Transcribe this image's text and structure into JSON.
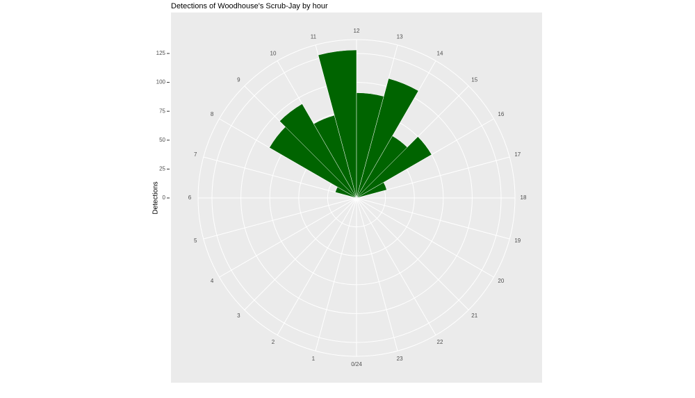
{
  "chart_data": {
    "type": "polar-bar",
    "title": "Detections of Woodhouse's Scrub-Jay by hour",
    "y_label": "Detections",
    "categories": [
      0,
      1,
      2,
      3,
      4,
      5,
      6,
      7,
      8,
      9,
      10,
      11,
      12,
      13,
      14,
      15,
      16,
      17,
      18,
      19,
      20,
      21,
      22,
      23
    ],
    "values": [
      0,
      0,
      0,
      0,
      0,
      0,
      0,
      19,
      87,
      94,
      74,
      128,
      91,
      107,
      62,
      75,
      27,
      0,
      0,
      0,
      0,
      0,
      0,
      0
    ],
    "color": "#006400",
    "xlim": [
      0,
      24
    ],
    "xticks": [
      {
        "value": 0,
        "label": "0/24"
      },
      1,
      2,
      3,
      4,
      5,
      6,
      7,
      8,
      9,
      10,
      11,
      12,
      13,
      14,
      15,
      16,
      17,
      18,
      19,
      20,
      21,
      22,
      23
    ],
    "ylim": [
      0,
      137
    ],
    "yticks": [
      0,
      25,
      50,
      75,
      100,
      125
    ],
    "grid": true
  }
}
